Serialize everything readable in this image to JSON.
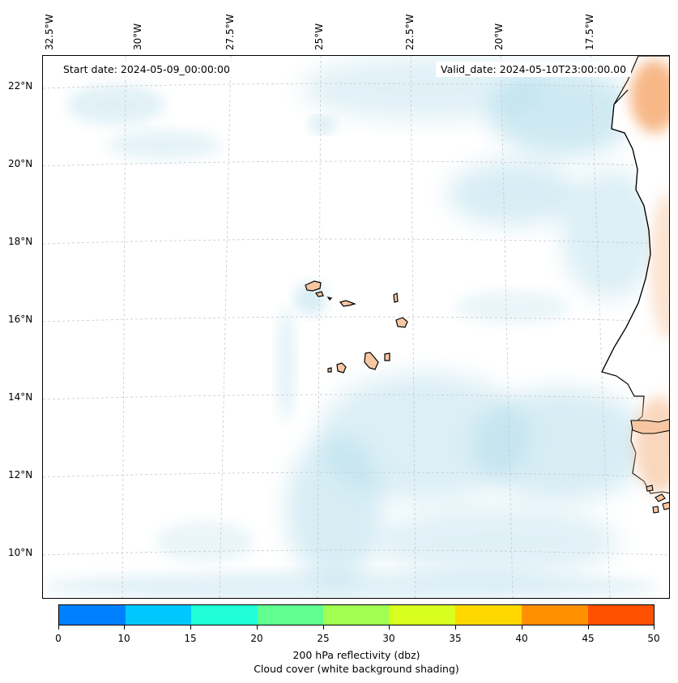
{
  "map": {
    "start_date": "Start date: 2024-05-09_00:00:00",
    "valid_date": "Valid_date: 2024-05-10T23:00:00.00",
    "lon_labels": [
      "32.5°W",
      "30°W",
      "27.5°W",
      "25°W",
      "22.5°W",
      "20°W",
      "17.5°W"
    ],
    "lat_labels": [
      "22°N",
      "20°N",
      "18°N",
      "16°N",
      "14°N",
      "12°N",
      "10°N"
    ]
  },
  "colorbar": {
    "ticks": [
      "0",
      "10",
      "15",
      "20",
      "25",
      "30",
      "35",
      "40",
      "45",
      "50"
    ],
    "colors": [
      "#0080ff",
      "#00c8ff",
      "#20ffd8",
      "#60ff90",
      "#a0ff50",
      "#d8ff20",
      "#ffd800",
      "#ff9000",
      "#ff5000"
    ],
    "title_line1": "200 hPa reflectivity (dbz)",
    "title_line2": "Cloud cover (white background shading)"
  },
  "colors": {
    "cloud": "#a8d8e8",
    "land": "#f7c7a3",
    "land_orange": "#f5a060",
    "grid": "#c8c8c8"
  }
}
